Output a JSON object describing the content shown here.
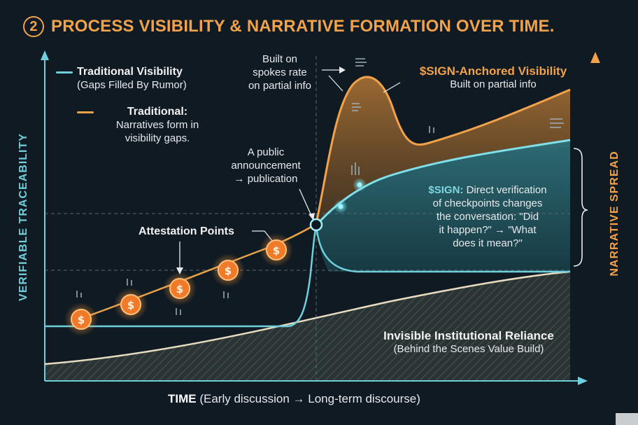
{
  "title": {
    "step": "2",
    "text": "PROCESS VISIBILITY & NARRATIVE FORMATION OVER TIME."
  },
  "axes": {
    "y_left": "VERIFIABLE TRACEABILITY",
    "y_right": "NARRATIVE SPREAD",
    "x_bold": "TIME",
    "x_rest": " (Early discussion → Long-term discourse)"
  },
  "legend": {
    "traditional_visibility": {
      "title": "Traditional Visibility",
      "sub": "(Gaps Filled By Rumor)",
      "color": "#6fd0dc"
    },
    "traditional": {
      "title": "Traditional:",
      "sub1": "Narratives form in",
      "sub2": "visibility gaps.",
      "color": "#e9a24a"
    }
  },
  "labels": {
    "built_on": [
      "Built on",
      "spokes rate",
      "on partial info"
    ],
    "sign_anchored_title": "$SIGN-Anchored Visibility",
    "sign_anchored_sub": "Built on partial info",
    "public_announcement": [
      "A public",
      "announcement",
      "→ publication"
    ],
    "attestation_points": "Attestation Points",
    "sign_box": {
      "bold": "$SIGN:",
      "line1": " Direct verification",
      "line2": "of checkpoints changes",
      "line3": "the conversation: \"Did",
      "line4": "it happen?\" → \"What",
      "line5": "does it mean?\""
    },
    "invisible_title": "Invisible Institutional Reliance",
    "invisible_sub": "(Behind the Scenes Value Build)"
  },
  "icons": {
    "attestation_point": "dollar-coin-icon",
    "sparkle": "data-sparkle-icon"
  },
  "colors": {
    "background": "#0f1a22",
    "cyan": "#6fd0dc",
    "orange": "#f2a24b",
    "coin": "#f07a2a",
    "cream": "#e8dcc0"
  }
}
